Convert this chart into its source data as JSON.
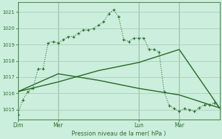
{
  "background_color": "#cceedd",
  "grid_color": "#aaccbb",
  "line_color": "#2d6e2d",
  "title": "Pression niveau de la mer( hPa )",
  "ylim": [
    1014.4,
    1021.6
  ],
  "yticks": [
    1015,
    1016,
    1017,
    1018,
    1019,
    1020,
    1021
  ],
  "day_labels": [
    "Dim",
    "Mer",
    "Lun",
    "Mar"
  ],
  "day_positions": [
    0,
    24,
    72,
    96
  ],
  "series1_x": [
    0,
    3,
    6,
    9,
    12,
    15,
    18,
    21,
    24,
    27,
    30,
    33,
    36,
    39,
    42,
    45,
    48,
    51,
    54,
    57,
    60,
    63,
    66,
    69,
    72,
    75,
    78,
    81,
    84,
    87,
    90,
    93,
    96,
    99,
    102,
    105,
    108,
    111,
    114,
    117,
    120
  ],
  "series1_y": [
    1014.7,
    1015.6,
    1016.1,
    1016.3,
    1017.5,
    1017.5,
    1019.1,
    1019.2,
    1019.1,
    1019.3,
    1019.5,
    1019.5,
    1019.7,
    1019.9,
    1019.9,
    1020.0,
    1020.2,
    1020.4,
    1020.9,
    1021.15,
    1020.7,
    1019.3,
    1019.2,
    1019.4,
    1019.4,
    1019.4,
    1018.7,
    1018.7,
    1018.55,
    1016.1,
    1015.25,
    1015.05,
    1014.9,
    1015.05,
    1015.0,
    1014.9,
    1015.1,
    1015.3,
    1015.3,
    1015.4,
    1015.1
  ],
  "series2_x": [
    0,
    24,
    48,
    72,
    96,
    120
  ],
  "series2_y": [
    1016.1,
    1016.7,
    1017.4,
    1017.9,
    1018.7,
    1015.1
  ],
  "series3_x": [
    0,
    24,
    48,
    72,
    96,
    120
  ],
  "series3_y": [
    1016.1,
    1017.2,
    1016.8,
    1016.3,
    1015.9,
    1015.1
  ]
}
